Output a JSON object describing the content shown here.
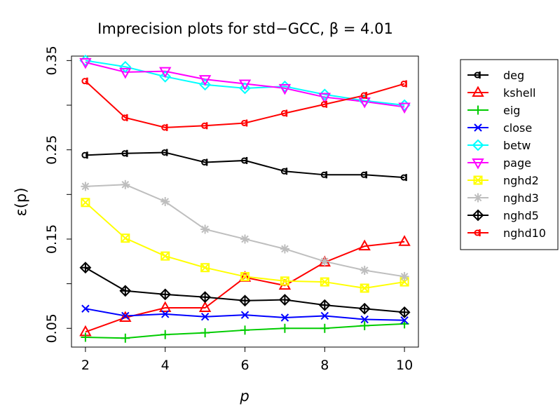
{
  "chart_data": {
    "type": "line",
    "title": "Imprecision plots for std−GCC, β = 4.01",
    "xlabel": "p",
    "ylabel": "ε(p)",
    "x": [
      2,
      3,
      4,
      5,
      6,
      7,
      8,
      9,
      10
    ],
    "xlim": [
      1.65,
      10.35
    ],
    "ylim": [
      0.029,
      0.355
    ],
    "xticks": [
      2,
      4,
      6,
      8,
      10
    ],
    "yticks": [
      0.05,
      0.1,
      0.15,
      0.2,
      0.25,
      0.3,
      0.35
    ],
    "ytick_labels": [
      "0.05",
      "",
      "0.15",
      "",
      "0.25",
      "",
      "0.35"
    ],
    "xtick_labels": [
      "2",
      "4",
      "6",
      "8",
      "10"
    ],
    "legend_position": "right, outside plot",
    "series": [
      {
        "name": "deg",
        "color": "#000000",
        "marker": "ghost-circle",
        "values": [
          0.244,
          0.246,
          0.247,
          0.236,
          0.238,
          0.226,
          0.222,
          0.222,
          0.219
        ]
      },
      {
        "name": "kshell",
        "color": "#ff0000",
        "marker": "triangle-up",
        "values": [
          0.046,
          0.062,
          0.073,
          0.073,
          0.107,
          0.098,
          0.124,
          0.142,
          0.147
        ]
      },
      {
        "name": "eig",
        "color": "#00cc00",
        "marker": "plus",
        "values": [
          0.04,
          0.039,
          0.043,
          0.045,
          0.048,
          0.05,
          0.05,
          0.053,
          0.055
        ]
      },
      {
        "name": "close",
        "color": "#0000ff",
        "marker": "x",
        "values": [
          0.072,
          0.064,
          0.066,
          0.063,
          0.065,
          0.062,
          0.064,
          0.06,
          0.059
        ]
      },
      {
        "name": "betw",
        "color": "#00ffff",
        "marker": "diamond",
        "values": [
          0.35,
          0.343,
          0.332,
          0.323,
          0.319,
          0.321,
          0.312,
          0.305,
          0.3
        ]
      },
      {
        "name": "page",
        "color": "#ff00ff",
        "marker": "triangle-down",
        "values": [
          0.348,
          0.337,
          0.338,
          0.329,
          0.324,
          0.319,
          0.309,
          0.304,
          0.298
        ]
      },
      {
        "name": "nghd2",
        "color": "#ffff00",
        "marker": "square-x",
        "values": [
          0.191,
          0.151,
          0.131,
          0.118,
          0.108,
          0.103,
          0.102,
          0.095,
          0.102
        ]
      },
      {
        "name": "nghd3",
        "color": "#bebebe",
        "marker": "asterisk",
        "values": [
          0.209,
          0.211,
          0.192,
          0.161,
          0.15,
          0.139,
          0.125,
          0.115,
          0.108
        ]
      },
      {
        "name": "nghd5",
        "color": "#000000",
        "marker": "diamond-plus",
        "values": [
          0.118,
          0.092,
          0.088,
          0.085,
          0.081,
          0.082,
          0.076,
          0.072,
          0.068
        ]
      },
      {
        "name": "nghd10",
        "color": "#ff0000",
        "marker": "ghost-circle",
        "values": [
          0.327,
          0.286,
          0.275,
          0.277,
          0.28,
          0.291,
          0.301,
          0.311,
          0.324
        ]
      }
    ]
  }
}
